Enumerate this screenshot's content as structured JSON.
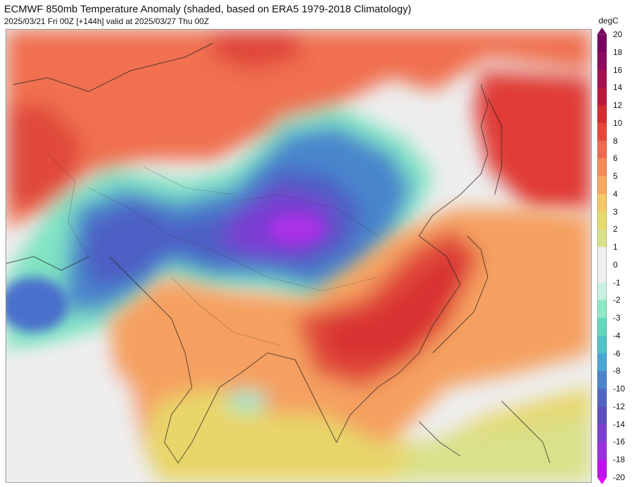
{
  "header": {
    "title": "ECMWF 850mb Temperature Anomaly (shaded, based on ERA5 1979-2018 Climatology)",
    "subtitle": "2025/03/21 Fri 00Z [+144h] valid at 2025/03/27 Thu 00Z"
  },
  "colorbar": {
    "unit": "degC",
    "labels": [
      "20",
      "18",
      "16",
      "14",
      "12",
      "10",
      "8",
      "6",
      "5",
      "4",
      "3",
      "2",
      "1",
      "0",
      "-1",
      "-2",
      "-3",
      "-4",
      "-6",
      "-8",
      "-10",
      "-12",
      "-14",
      "-16",
      "-18",
      "-20"
    ],
    "top_arrow_color": "#7a0060",
    "bottom_arrow_color": "#e600ff",
    "colors": [
      "#7a0060",
      "#8e0a5e",
      "#a5104f",
      "#bc1840",
      "#d52a2f",
      "#e8453a",
      "#f06a4f",
      "#f58a5a",
      "#f8a863",
      "#f3c866",
      "#e5da6a",
      "#d9e18a",
      "#eeeeee",
      "#eeeeee",
      "#c8f0e0",
      "#8ee8c4",
      "#60d9bb",
      "#4fc4c8",
      "#4aa6d4",
      "#4a84cc",
      "#4f66c4",
      "#5a4fc0",
      "#7a3fd0",
      "#9a30e0",
      "#c010f0"
    ]
  },
  "colors": {
    "background": "#f0f0f0",
    "warm_strong": "#d83232",
    "warm": "#f0704f",
    "warm_light": "#f5a060",
    "yellow": "#e8d66a",
    "green_light": "#d9e18a",
    "neutral": "#eeeeee",
    "cyan": "#7fe3c3",
    "teal": "#4fc6c6",
    "blue": "#4a86cc",
    "blue_dark": "#4e5ec4",
    "purple": "#7a3ed2",
    "purple_core": "#a832e6"
  }
}
